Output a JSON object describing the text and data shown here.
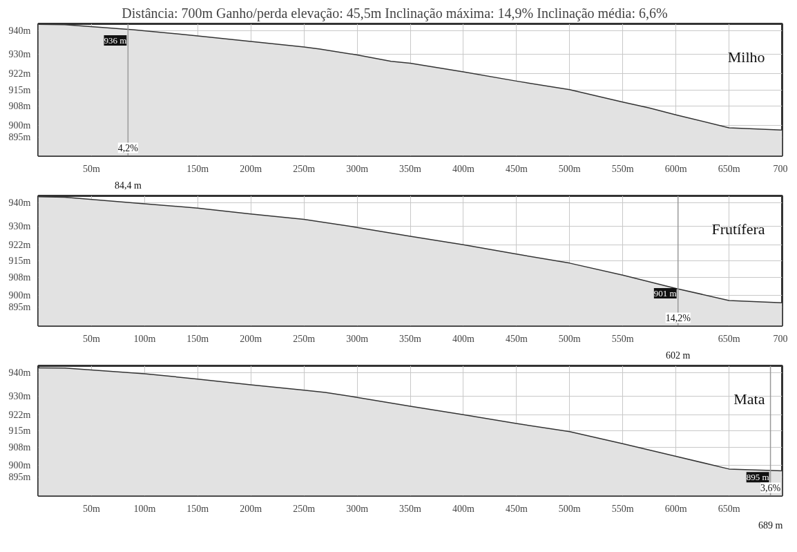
{
  "chart_data": [
    {
      "type": "area",
      "title": "Distância: 700m    Ganho/perda elevação: 45,5m    Inclinação máxima: 14,9%    Inclinação média: 6,6%",
      "color": "#e2e2e2",
      "grid": true,
      "x": [
        0,
        25,
        89,
        150,
        200,
        250,
        265,
        300,
        332,
        350,
        400,
        450,
        500,
        550,
        575,
        600,
        650,
        700
      ],
      "values": [
        942.8,
        942.6,
        940.5,
        937.9,
        935.5,
        933.2,
        932.3,
        929.8,
        927.1,
        926.3,
        922.6,
        918.7,
        915.1,
        909.8,
        907.3,
        904.4,
        898.9,
        897.9
      ],
      "xlim": [
        0,
        700
      ],
      "ylim": [
        887,
        943
      ],
      "xticks": [
        {
          "value": 50,
          "label": "50m"
        },
        {
          "value": 150,
          "label": "150m"
        },
        {
          "value": 200,
          "label": "200m"
        },
        {
          "value": 250,
          "label": "250m"
        },
        {
          "value": 300,
          "label": "300m"
        },
        {
          "value": 350,
          "label": "350m"
        },
        {
          "value": 400,
          "label": "400m"
        },
        {
          "value": 450,
          "label": "450m"
        },
        {
          "value": 500,
          "label": "500m"
        },
        {
          "value": 550,
          "label": "550m"
        },
        {
          "value": 600,
          "label": "600m"
        },
        {
          "value": 650,
          "label": "650m"
        },
        {
          "value": 700,
          "label": "700"
        }
      ],
      "yticks": [
        {
          "value": 940,
          "label": "940m"
        },
        {
          "value": 930,
          "label": "930m"
        },
        {
          "value": 922,
          "label": "922m"
        },
        {
          "value": 915,
          "label": "915m"
        },
        {
          "value": 908,
          "label": "908m"
        },
        {
          "value": 900,
          "label": "900m"
        },
        {
          "value": 895,
          "label": "895m"
        }
      ],
      "ref_lines": [
        {
          "axis": "x",
          "value": 84.4,
          "label": "84,4 m"
        }
      ],
      "annotations": [
        "Milho",
        {
          "text": "936 m",
          "x": 84.4,
          "y": 936
        },
        {
          "text": "4,2%",
          "x": 84.4
        }
      ]
    },
    {
      "type": "area",
      "color": "#e2e2e2",
      "grid": true,
      "x": [
        0,
        25,
        100,
        150,
        200,
        250,
        300,
        350,
        400,
        450,
        500,
        550,
        600,
        650,
        700
      ],
      "values": [
        942.6,
        942.4,
        939.6,
        937.7,
        935.2,
        932.9,
        929.4,
        925.6,
        921.9,
        917.9,
        914.0,
        908.8,
        903.1,
        897.9,
        896.9
      ],
      "xlim": [
        0,
        700
      ],
      "ylim": [
        887,
        943
      ],
      "xticks": [
        {
          "value": 50,
          "label": "50m"
        },
        {
          "value": 100,
          "label": "100m"
        },
        {
          "value": 150,
          "label": "150m"
        },
        {
          "value": 200,
          "label": "200m"
        },
        {
          "value": 250,
          "label": "250m"
        },
        {
          "value": 300,
          "label": "300m"
        },
        {
          "value": 350,
          "label": "350m"
        },
        {
          "value": 400,
          "label": "400m"
        },
        {
          "value": 450,
          "label": "450m"
        },
        {
          "value": 500,
          "label": "500m"
        },
        {
          "value": 550,
          "label": "550m"
        },
        {
          "value": 650,
          "label": "650m"
        },
        {
          "value": 700,
          "label": "700"
        }
      ],
      "yticks": [
        {
          "value": 940,
          "label": "940m"
        },
        {
          "value": 930,
          "label": "930m"
        },
        {
          "value": 922,
          "label": "922m"
        },
        {
          "value": 915,
          "label": "915m"
        },
        {
          "value": 908,
          "label": "908m"
        },
        {
          "value": 900,
          "label": "900m"
        },
        {
          "value": 895,
          "label": "895m"
        }
      ],
      "ref_lines": [
        {
          "axis": "x",
          "value": 602,
          "label": "602 m"
        }
      ],
      "annotations": [
        "Frutífera",
        {
          "text": "901 m",
          "x": 602,
          "y": 901
        },
        {
          "text": "14,2%",
          "x": 602
        }
      ]
    },
    {
      "type": "area",
      "color": "#e2e2e2",
      "grid": true,
      "x": [
        0,
        25,
        50,
        100,
        150,
        200,
        250,
        270,
        300,
        350,
        400,
        450,
        500,
        550,
        600,
        650,
        700
      ],
      "values": [
        942.1,
        942.0,
        941.2,
        939.6,
        937.3,
        934.8,
        932.5,
        931.5,
        929.4,
        925.6,
        921.9,
        918.1,
        914.6,
        909.4,
        904.0,
        898.5,
        897.7
      ],
      "xlim": [
        0,
        700
      ],
      "ylim": [
        887,
        943
      ],
      "xticks": [
        {
          "value": 50,
          "label": "50m"
        },
        {
          "value": 100,
          "label": "100m"
        },
        {
          "value": 150,
          "label": "150m"
        },
        {
          "value": 200,
          "label": "200m"
        },
        {
          "value": 250,
          "label": "250m"
        },
        {
          "value": 300,
          "label": "300m"
        },
        {
          "value": 350,
          "label": "350m"
        },
        {
          "value": 400,
          "label": "400m"
        },
        {
          "value": 450,
          "label": "450m"
        },
        {
          "value": 500,
          "label": "500m"
        },
        {
          "value": 550,
          "label": "550m"
        },
        {
          "value": 600,
          "label": "600m"
        },
        {
          "value": 650,
          "label": "650m"
        }
      ],
      "yticks": [
        {
          "value": 940,
          "label": "940m"
        },
        {
          "value": 930,
          "label": "930m"
        },
        {
          "value": 922,
          "label": "922m"
        },
        {
          "value": 915,
          "label": "915m"
        },
        {
          "value": 908,
          "label": "908m"
        },
        {
          "value": 900,
          "label": "900m"
        },
        {
          "value": 895,
          "label": "895m"
        }
      ],
      "ref_lines": [
        {
          "axis": "x",
          "value": 689,
          "label": "689 m"
        }
      ],
      "annotations": [
        "Mata",
        {
          "text": "895 m",
          "x": 689,
          "y": 895
        },
        {
          "text": "3,6%",
          "x": 689
        }
      ]
    }
  ]
}
